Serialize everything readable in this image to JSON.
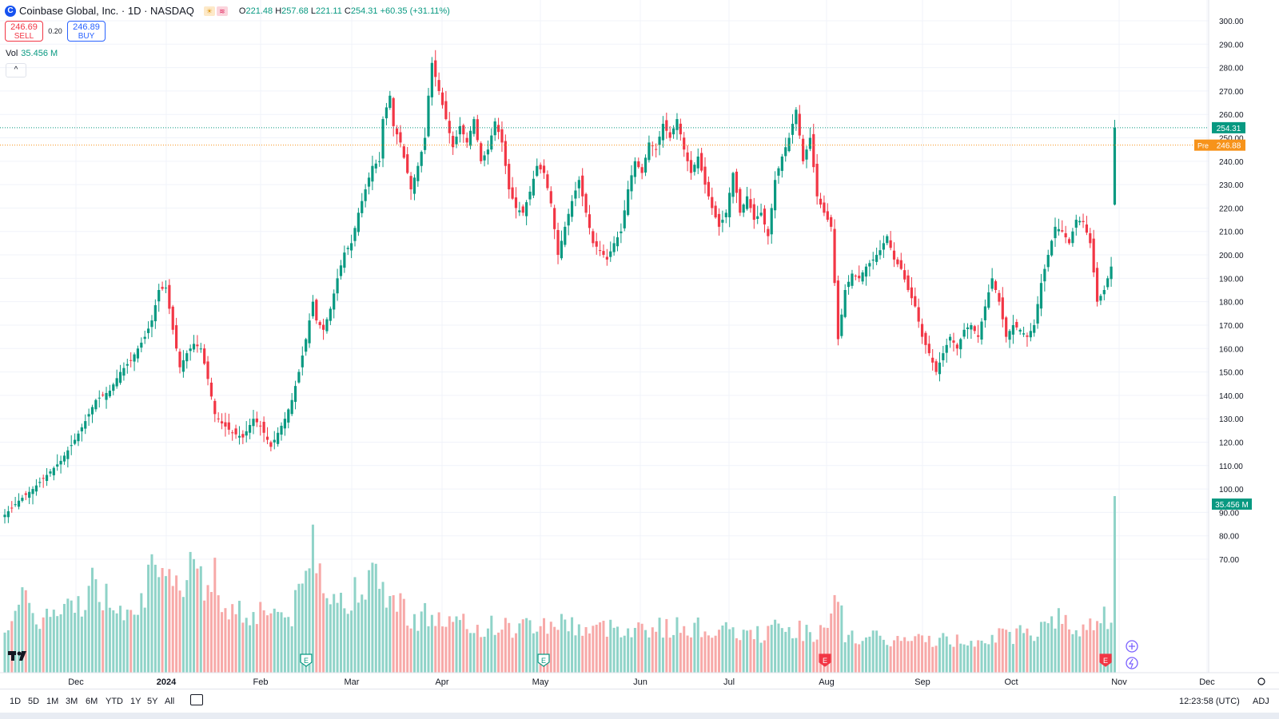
{
  "header": {
    "logo_letter": "C",
    "symbol": "Coinbase Global, Inc. · 1D · NASDAQ",
    "badges": [
      "☀",
      "≋"
    ],
    "ohlc": [
      {
        "k": "O",
        "v": "221.48"
      },
      {
        "k": "H",
        "v": "257.68"
      },
      {
        "k": "L",
        "v": "221.11"
      },
      {
        "k": "C",
        "v": "254.31"
      },
      {
        "k": "",
        "v": "+60.35 (+31.11%)"
      }
    ]
  },
  "trade": {
    "sell_price": "246.69",
    "sell_label": "SELL",
    "spread": "0.20",
    "buy_price": "246.89",
    "buy_label": "BUY"
  },
  "volume_legend": {
    "label": "Vol",
    "value": "35.456 M"
  },
  "collapse_glyph": "^",
  "bottom": {
    "ranges": [
      "1D",
      "5D",
      "1M",
      "3M",
      "6M",
      "YTD",
      "1Y",
      "5Y",
      "All"
    ],
    "clock": "12:23:58 (UTC)",
    "adj": "ADJ"
  },
  "colors": {
    "up": "#089981",
    "down": "#f23645",
    "up_vol": "#8fd3c8",
    "down_vol": "#f7a9a8",
    "pre": "#f7931a"
  },
  "chart_data": {
    "type": "candlestick",
    "price_axis": {
      "min": 70,
      "max": 300,
      "ticks": [
        "300.00",
        "290.00",
        "280.00",
        "270.00",
        "260.00",
        "250.00",
        "240.00",
        "230.00",
        "220.00",
        "210.00",
        "200.00",
        "190.00",
        "180.00",
        "170.00",
        "160.00",
        "150.00",
        "140.00",
        "130.00",
        "120.00",
        "110.00",
        "100.00",
        "90.00",
        "80.00",
        "70.00"
      ]
    },
    "time_axis": [
      "Dec",
      "2024",
      "Feb",
      "Mar",
      "Apr",
      "May",
      "Jun",
      "Jul",
      "Aug",
      "Sep",
      "Oct",
      "Nov",
      "Dec"
    ],
    "last_price": "254.31",
    "pre_market": {
      "label": "Pre",
      "value": "246.88"
    },
    "volume_label": "35.456 M",
    "event_markers": [
      {
        "type": "E",
        "date": "Feb 15"
      },
      {
        "type": "E",
        "date": "May 2"
      },
      {
        "type": "E",
        "date": "Aug 1"
      },
      {
        "type": "E",
        "date": "Oct 30"
      }
    ],
    "close_keypoints": [
      [
        0,
        89
      ],
      [
        4,
        95
      ],
      [
        8,
        100
      ],
      [
        12,
        106
      ],
      [
        16,
        112
      ],
      [
        20,
        121
      ],
      [
        23,
        129
      ],
      [
        26,
        138
      ],
      [
        30,
        142
      ],
      [
        33,
        150
      ],
      [
        36,
        155
      ],
      [
        38,
        160
      ],
      [
        40,
        165
      ],
      [
        42,
        172
      ],
      [
        44,
        185
      ],
      [
        46,
        186
      ],
      [
        48,
        168
      ],
      [
        50,
        152
      ],
      [
        52,
        158
      ],
      [
        54,
        162
      ],
      [
        56,
        160
      ],
      [
        58,
        147
      ],
      [
        60,
        132
      ],
      [
        62,
        128
      ],
      [
        65,
        124
      ],
      [
        68,
        122
      ],
      [
        71,
        130
      ],
      [
        73,
        127
      ],
      [
        76,
        118
      ],
      [
        78,
        124
      ],
      [
        80,
        130
      ],
      [
        82,
        138
      ],
      [
        84,
        150
      ],
      [
        86,
        164
      ],
      [
        88,
        180
      ],
      [
        89,
        172
      ],
      [
        91,
        168
      ],
      [
        93,
        177
      ],
      [
        95,
        190
      ],
      [
        97,
        201
      ],
      [
        99,
        205
      ],
      [
        101,
        218
      ],
      [
        103,
        228
      ],
      [
        105,
        238
      ],
      [
        107,
        240
      ],
      [
        108,
        258
      ],
      [
        110,
        268
      ],
      [
        111,
        255
      ],
      [
        113,
        248
      ],
      [
        115,
        235
      ],
      [
        116,
        228
      ],
      [
        118,
        238
      ],
      [
        120,
        250
      ],
      [
        121,
        268
      ],
      [
        122,
        282
      ],
      [
        124,
        270
      ],
      [
        126,
        258
      ],
      [
        128,
        246
      ],
      [
        130,
        255
      ],
      [
        132,
        248
      ],
      [
        134,
        258
      ],
      [
        136,
        240
      ],
      [
        138,
        245
      ],
      [
        140,
        257
      ],
      [
        142,
        248
      ],
      [
        144,
        228
      ],
      [
        146,
        220
      ],
      [
        148,
        218
      ],
      [
        150,
        227
      ],
      [
        152,
        238
      ],
      [
        154,
        235
      ],
      [
        156,
        222
      ],
      [
        158,
        200
      ],
      [
        160,
        212
      ],
      [
        162,
        223
      ],
      [
        164,
        232
      ],
      [
        166,
        218
      ],
      [
        168,
        205
      ],
      [
        170,
        202
      ],
      [
        172,
        198
      ],
      [
        174,
        205
      ],
      [
        176,
        210
      ],
      [
        178,
        228
      ],
      [
        180,
        240
      ],
      [
        182,
        235
      ],
      [
        184,
        248
      ],
      [
        186,
        245
      ],
      [
        188,
        256
      ],
      [
        190,
        250
      ],
      [
        192,
        258
      ],
      [
        194,
        245
      ],
      [
        196,
        235
      ],
      [
        198,
        242
      ],
      [
        200,
        230
      ],
      [
        202,
        220
      ],
      [
        204,
        212
      ],
      [
        206,
        218
      ],
      [
        208,
        235
      ],
      [
        210,
        218
      ],
      [
        212,
        225
      ],
      [
        214,
        215
      ],
      [
        216,
        218
      ],
      [
        218,
        208
      ],
      [
        220,
        232
      ],
      [
        222,
        242
      ],
      [
        224,
        250
      ],
      [
        226,
        262
      ],
      [
        228,
        240
      ],
      [
        230,
        250
      ],
      [
        232,
        225
      ],
      [
        234,
        218
      ],
      [
        236,
        212
      ],
      [
        238,
        164
      ],
      [
        240,
        185
      ],
      [
        242,
        192
      ],
      [
        244,
        190
      ],
      [
        246,
        195
      ],
      [
        248,
        198
      ],
      [
        250,
        202
      ],
      [
        252,
        208
      ],
      [
        254,
        198
      ],
      [
        256,
        194
      ],
      [
        258,
        185
      ],
      [
        260,
        178
      ],
      [
        262,
        165
      ],
      [
        264,
        158
      ],
      [
        266,
        150
      ],
      [
        268,
        158
      ],
      [
        270,
        165
      ],
      [
        272,
        160
      ],
      [
        274,
        168
      ],
      [
        276,
        170
      ],
      [
        278,
        165
      ],
      [
        280,
        178
      ],
      [
        282,
        190
      ],
      [
        284,
        180
      ],
      [
        286,
        165
      ],
      [
        288,
        170
      ],
      [
        290,
        168
      ],
      [
        292,
        165
      ],
      [
        294,
        170
      ],
      [
        296,
        188
      ],
      [
        298,
        200
      ],
      [
        300,
        212
      ],
      [
        302,
        210
      ],
      [
        304,
        205
      ],
      [
        306,
        215
      ],
      [
        308,
        214
      ],
      [
        310,
        205
      ],
      [
        312,
        180
      ],
      [
        314,
        185
      ],
      [
        316,
        195
      ],
      [
        317,
        254.31
      ]
    ],
    "volume_scale_max": 127,
    "volume_points": [
      [
        0,
        34
      ],
      [
        5,
        48
      ],
      [
        10,
        38
      ],
      [
        15,
        40
      ],
      [
        20,
        45
      ],
      [
        25,
        60
      ],
      [
        30,
        50
      ],
      [
        35,
        47
      ],
      [
        40,
        55
      ],
      [
        42,
        68
      ],
      [
        45,
        58
      ],
      [
        50,
        62
      ],
      [
        55,
        90
      ],
      [
        58,
        50
      ],
      [
        60,
        67
      ],
      [
        62,
        48
      ],
      [
        65,
        45
      ],
      [
        68,
        42
      ],
      [
        70,
        40
      ],
      [
        75,
        45
      ],
      [
        78,
        42
      ],
      [
        80,
        38
      ],
      [
        82,
        40
      ],
      [
        84,
        52
      ],
      [
        86,
        66
      ],
      [
        88,
        93
      ],
      [
        90,
        75
      ],
      [
        92,
        62
      ],
      [
        94,
        55
      ],
      [
        96,
        48
      ],
      [
        98,
        42
      ],
      [
        100,
        58
      ],
      [
        102,
        70
      ],
      [
        104,
        62
      ],
      [
        106,
        62
      ],
      [
        108,
        60
      ],
      [
        110,
        52
      ],
      [
        112,
        48
      ],
      [
        114,
        45
      ],
      [
        116,
        40
      ],
      [
        118,
        36
      ],
      [
        120,
        40
      ],
      [
        125,
        35
      ],
      [
        130,
        33
      ],
      [
        135,
        30
      ],
      [
        140,
        33
      ],
      [
        145,
        30
      ],
      [
        150,
        33
      ],
      [
        155,
        33
      ],
      [
        160,
        35
      ],
      [
        165,
        30
      ],
      [
        170,
        30
      ],
      [
        175,
        32
      ],
      [
        180,
        30
      ],
      [
        185,
        32
      ],
      [
        190,
        30
      ],
      [
        195,
        32
      ],
      [
        200,
        30
      ],
      [
        205,
        28
      ],
      [
        210,
        27
      ],
      [
        215,
        26
      ],
      [
        220,
        30
      ],
      [
        225,
        30
      ],
      [
        230,
        28
      ],
      [
        235,
        27
      ],
      [
        238,
        52
      ],
      [
        240,
        25
      ],
      [
        245,
        24
      ],
      [
        250,
        23
      ],
      [
        255,
        22
      ],
      [
        260,
        22
      ],
      [
        265,
        23
      ],
      [
        270,
        22
      ],
      [
        275,
        22
      ],
      [
        280,
        25
      ],
      [
        285,
        25
      ],
      [
        290,
        27
      ],
      [
        295,
        28
      ],
      [
        298,
        42
      ],
      [
        300,
        38
      ],
      [
        305,
        30
      ],
      [
        310,
        32
      ],
      [
        314,
        44
      ],
      [
        316,
        30
      ],
      [
        317,
        121
      ]
    ]
  }
}
